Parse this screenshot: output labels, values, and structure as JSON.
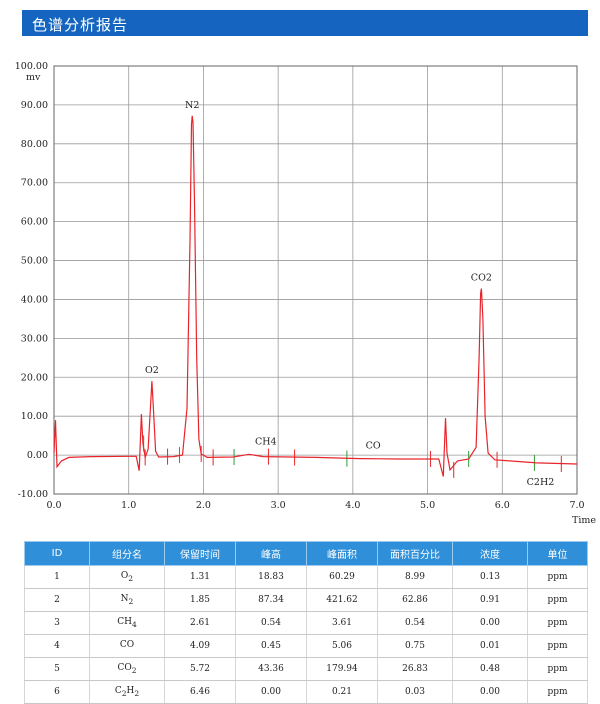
{
  "header": {
    "title": "色谱分析报告"
  },
  "chart_data": {
    "type": "line",
    "y_unit": "mv",
    "xlabel": "Time",
    "xlim": [
      0,
      7
    ],
    "ylim": [
      -10,
      100
    ],
    "x_ticks": [
      "0.0",
      "1.0",
      "2.0",
      "3.0",
      "4.0",
      "5.0",
      "6.0",
      "7.0"
    ],
    "y_ticks": [
      "-10.00",
      "0.00",
      "10.00",
      "20.00",
      "30.00",
      "40.00",
      "50.00",
      "60.00",
      "70.00",
      "80.00",
      "90.00",
      "100.00"
    ],
    "line_color": "#e8242b",
    "marker_color": "#2e9a3a",
    "series": [
      {
        "values": [
          [
            0.0,
            0.5
          ],
          [
            0.02,
            9.0
          ],
          [
            0.04,
            -3.0
          ],
          [
            0.1,
            -1.5
          ],
          [
            0.2,
            -0.6
          ],
          [
            0.5,
            -0.4
          ],
          [
            1.0,
            -0.3
          ],
          [
            1.1,
            -0.3
          ],
          [
            1.14,
            -4.0
          ],
          [
            1.17,
            10.5
          ],
          [
            1.19,
            3.0
          ],
          [
            1.22,
            -0.6
          ],
          [
            1.26,
            1.5
          ],
          [
            1.29,
            12.0
          ],
          [
            1.31,
            19.0
          ],
          [
            1.33,
            12.0
          ],
          [
            1.36,
            1.0
          ],
          [
            1.4,
            -0.5
          ],
          [
            1.6,
            -0.4
          ],
          [
            1.72,
            0.0
          ],
          [
            1.78,
            12.0
          ],
          [
            1.82,
            55.0
          ],
          [
            1.84,
            85.0
          ],
          [
            1.85,
            87.2
          ],
          [
            1.86,
            85.5
          ],
          [
            1.88,
            65.0
          ],
          [
            1.91,
            25.0
          ],
          [
            1.94,
            4.0
          ],
          [
            1.97,
            0.3
          ],
          [
            2.05,
            -0.6
          ],
          [
            2.4,
            -0.5
          ],
          [
            2.61,
            0.2
          ],
          [
            2.8,
            -0.4
          ],
          [
            3.5,
            -0.6
          ],
          [
            4.09,
            -0.9
          ],
          [
            4.6,
            -1.0
          ],
          [
            5.15,
            -1.0
          ],
          [
            5.21,
            -5.5
          ],
          [
            5.24,
            9.5
          ],
          [
            5.26,
            0.5
          ],
          [
            5.3,
            -3.8
          ],
          [
            5.4,
            -1.5
          ],
          [
            5.55,
            -1.0
          ],
          [
            5.65,
            2.0
          ],
          [
            5.69,
            25.0
          ],
          [
            5.71,
            41.5
          ],
          [
            5.72,
            42.8
          ],
          [
            5.74,
            35.0
          ],
          [
            5.77,
            10.0
          ],
          [
            5.81,
            0.5
          ],
          [
            5.9,
            -1.2
          ],
          [
            6.46,
            -2.0
          ],
          [
            7.0,
            -2.3
          ]
        ]
      }
    ],
    "peak_labels": [
      {
        "text": "O2",
        "x": 1.31,
        "y": 19.0
      },
      {
        "text": "N2",
        "x": 1.85,
        "y": 87.2
      },
      {
        "text": "CH4",
        "x": 2.61,
        "y": 0.2
      },
      {
        "text": "CO",
        "x": 4.09,
        "y": -0.9
      },
      {
        "text": "CO2",
        "x": 5.72,
        "y": 42.8
      },
      {
        "text": "C2H2",
        "x": 6.46,
        "y": -2.0
      }
    ],
    "peak_start_end_marks": [
      1.22,
      1.52,
      1.97,
      2.13,
      2.87,
      3.22,
      5.04,
      5.35,
      5.93,
      6.79
    ],
    "peak_apex_marks": [
      1.2,
      1.68,
      2.41,
      3.92,
      5.55,
      6.43
    ]
  },
  "results_table": {
    "headers": [
      "ID",
      "组分名",
      "保留时间",
      "峰高",
      "峰面积",
      "面积百分比",
      "浓度",
      "单位"
    ],
    "rows": [
      {
        "id": "1",
        "name": "O",
        "sub": "2",
        "rt": "1.31",
        "height": "18.83",
        "area": "60.29",
        "pct": "8.99",
        "conc": "0.13",
        "unit": "ppm"
      },
      {
        "id": "2",
        "name": "N",
        "sub": "2",
        "rt": "1.85",
        "height": "87.34",
        "area": "421.62",
        "pct": "62.86",
        "conc": "0.91",
        "unit": "ppm"
      },
      {
        "id": "3",
        "name": "CH",
        "sub": "4",
        "rt": "2.61",
        "height": "0.54",
        "area": "3.61",
        "pct": "0.54",
        "conc": "0.00",
        "unit": "ppm"
      },
      {
        "id": "4",
        "name": "CO",
        "sub": "",
        "rt": "4.09",
        "height": "0.45",
        "area": "5.06",
        "pct": "0.75",
        "conc": "0.01",
        "unit": "ppm"
      },
      {
        "id": "5",
        "name": "CO",
        "sub": "2",
        "rt": "5.72",
        "height": "43.36",
        "area": "179.94",
        "pct": "26.83",
        "conc": "0.48",
        "unit": "ppm"
      },
      {
        "id": "6",
        "name": "C",
        "sub": "2",
        "name2": "H",
        "sub2": "2",
        "rt": "6.46",
        "height": "0.00",
        "area": "0.21",
        "pct": "0.03",
        "conc": "0.00",
        "unit": "ppm"
      }
    ]
  }
}
